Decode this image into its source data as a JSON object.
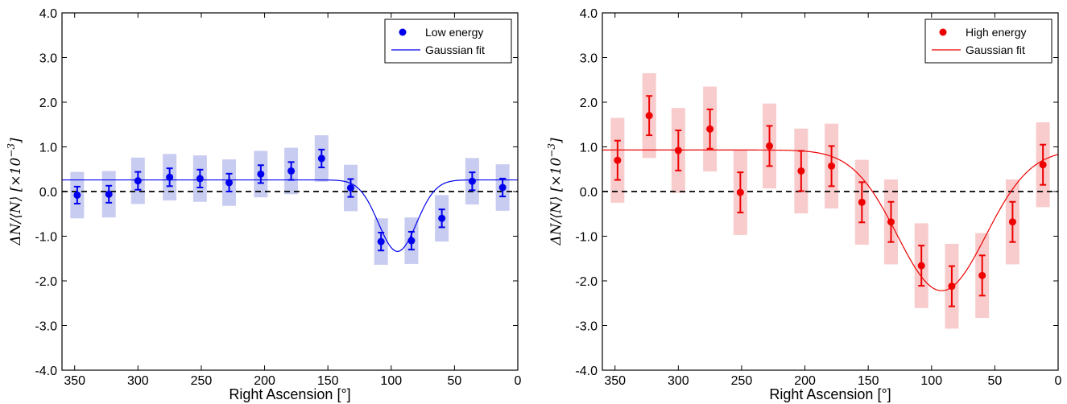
{
  "chart_data": [
    {
      "type": "scatter",
      "xlabel": "Right Ascension",
      "xlabel_unit": "[°]",
      "ylabel": "ΔN/⟨N⟩ [×10",
      "ylabel_exp": "−3",
      "ylabel_close": "]",
      "xlim": [
        360,
        0
      ],
      "ylim": [
        -4.0,
        4.0
      ],
      "x_ticks": [
        350,
        300,
        250,
        200,
        150,
        100,
        50,
        0
      ],
      "y_ticks": [
        "-4.0",
        "-3.0",
        "-2.0",
        "-1.0",
        "0.0",
        "1.0",
        "2.0",
        "3.0",
        "4.0"
      ],
      "grid": false,
      "legend_position": "top-right",
      "reference_line": 0,
      "color": "#0000ee",
      "band_color": "#c8ccf0",
      "series": [
        {
          "name": "Low energy",
          "x": [
            348,
            323,
            300,
            275,
            251,
            228,
            203,
            179,
            155,
            132,
            108,
            84,
            60,
            36,
            12
          ],
          "y": [
            -0.08,
            -0.06,
            0.24,
            0.32,
            0.29,
            0.2,
            0.39,
            0.46,
            0.74,
            0.08,
            -1.12,
            -1.1,
            -0.6,
            0.23,
            0.09
          ],
          "err": [
            0.19,
            0.19,
            0.2,
            0.2,
            0.2,
            0.2,
            0.2,
            0.2,
            0.2,
            0.2,
            0.2,
            0.2,
            0.2,
            0.2,
            0.2
          ],
          "sys": [
            0.52,
            0.52,
            0.52,
            0.52,
            0.52,
            0.52,
            0.52,
            0.52,
            0.52,
            0.52,
            0.52,
            0.52,
            0.52,
            0.52,
            0.52
          ]
        },
        {
          "name": "Gaussian fit",
          "fit": {
            "baseline": 0.26,
            "amplitude": -1.6,
            "center": 95,
            "sigma": 15
          }
        }
      ]
    },
    {
      "type": "scatter",
      "xlabel": "Right Ascension",
      "xlabel_unit": "[°]",
      "ylabel": "ΔN/⟨N⟩ [×10",
      "ylabel_exp": "−3",
      "ylabel_close": "]",
      "xlim": [
        360,
        0
      ],
      "ylim": [
        -4.0,
        4.0
      ],
      "x_ticks": [
        350,
        300,
        250,
        200,
        150,
        100,
        50,
        0
      ],
      "y_ticks": [
        "-4.0",
        "-3.0",
        "-2.0",
        "-1.0",
        "0.0",
        "1.0",
        "2.0",
        "3.0",
        "4.0"
      ],
      "grid": false,
      "legend_position": "top-right",
      "reference_line": 0,
      "color": "#ee0000",
      "band_color": "#f8cccc",
      "series": [
        {
          "name": "High energy",
          "x": [
            348,
            323,
            300,
            275,
            251,
            228,
            203,
            179,
            155,
            132,
            108,
            84,
            60,
            36,
            12
          ],
          "y": [
            0.7,
            1.7,
            0.92,
            1.4,
            -0.02,
            1.02,
            0.46,
            0.57,
            -0.24,
            -0.68,
            -1.66,
            -2.12,
            -1.88,
            -0.68,
            0.6
          ],
          "err": [
            0.44,
            0.44,
            0.45,
            0.44,
            0.45,
            0.45,
            0.45,
            0.45,
            0.45,
            0.45,
            0.45,
            0.45,
            0.45,
            0.45,
            0.45
          ],
          "sys": [
            0.95,
            0.95,
            0.95,
            0.95,
            0.95,
            0.95,
            0.95,
            0.95,
            0.95,
            0.95,
            0.95,
            0.95,
            0.95,
            0.95,
            0.95
          ]
        },
        {
          "name": "Gaussian fit",
          "fit": {
            "baseline": 0.93,
            "amplitude": -3.15,
            "center": 92,
            "sigma": 35
          }
        }
      ]
    }
  ]
}
